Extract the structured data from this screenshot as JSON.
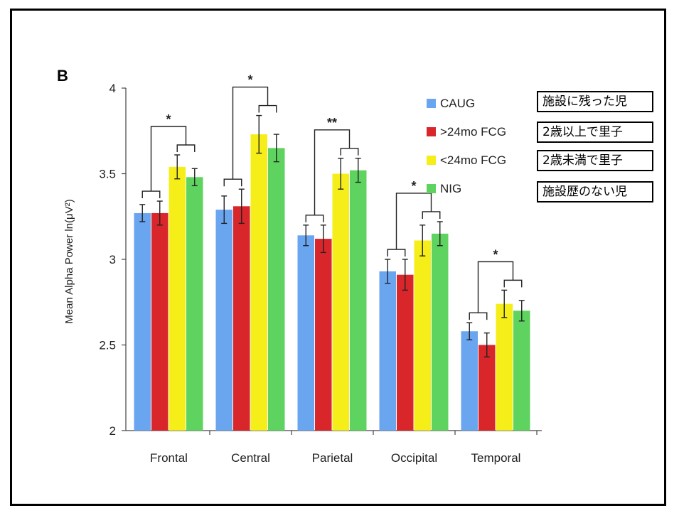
{
  "panel_label": "B",
  "annotations_jp": [
    "施設に残った児",
    "2歳以上で里子",
    "2歳未満で里子",
    "施設歴のない児"
  ],
  "colors": {
    "CAUG": "#6aa6f0",
    ">24mo FCG": "#d8262b",
    "<24mo FCG": "#f5ee18",
    "NIG": "#5fd35f"
  },
  "chart_data": {
    "type": "bar",
    "title": "",
    "xlabel": "",
    "ylabel": "Mean Alpha Power ln(μV²)",
    "ylim": [
      2,
      4
    ],
    "yticks": [
      "2",
      "2.5",
      "3",
      "3.5",
      "4"
    ],
    "categories": [
      "Frontal",
      "Central",
      "Parietal",
      "Occipital",
      "Temporal"
    ],
    "series": [
      {
        "name": "CAUG",
        "values": [
          3.27,
          3.29,
          3.14,
          2.93,
          2.58
        ],
        "errors": [
          0.05,
          0.08,
          0.06,
          0.07,
          0.05
        ]
      },
      {
        "name": ">24mo FCG",
        "values": [
          3.27,
          3.31,
          3.12,
          2.91,
          2.5
        ],
        "errors": [
          0.07,
          0.1,
          0.08,
          0.09,
          0.07
        ]
      },
      {
        "name": "<24mo FCG",
        "values": [
          3.54,
          3.73,
          3.5,
          3.11,
          2.74
        ],
        "errors": [
          0.07,
          0.11,
          0.09,
          0.09,
          0.08
        ]
      },
      {
        "name": "NIG",
        "values": [
          3.48,
          3.65,
          3.52,
          3.15,
          2.7
        ],
        "errors": [
          0.05,
          0.08,
          0.07,
          0.07,
          0.06
        ]
      }
    ],
    "significance": [
      "*",
      "*",
      "**",
      "*",
      "*"
    ],
    "legend": "top-right"
  }
}
